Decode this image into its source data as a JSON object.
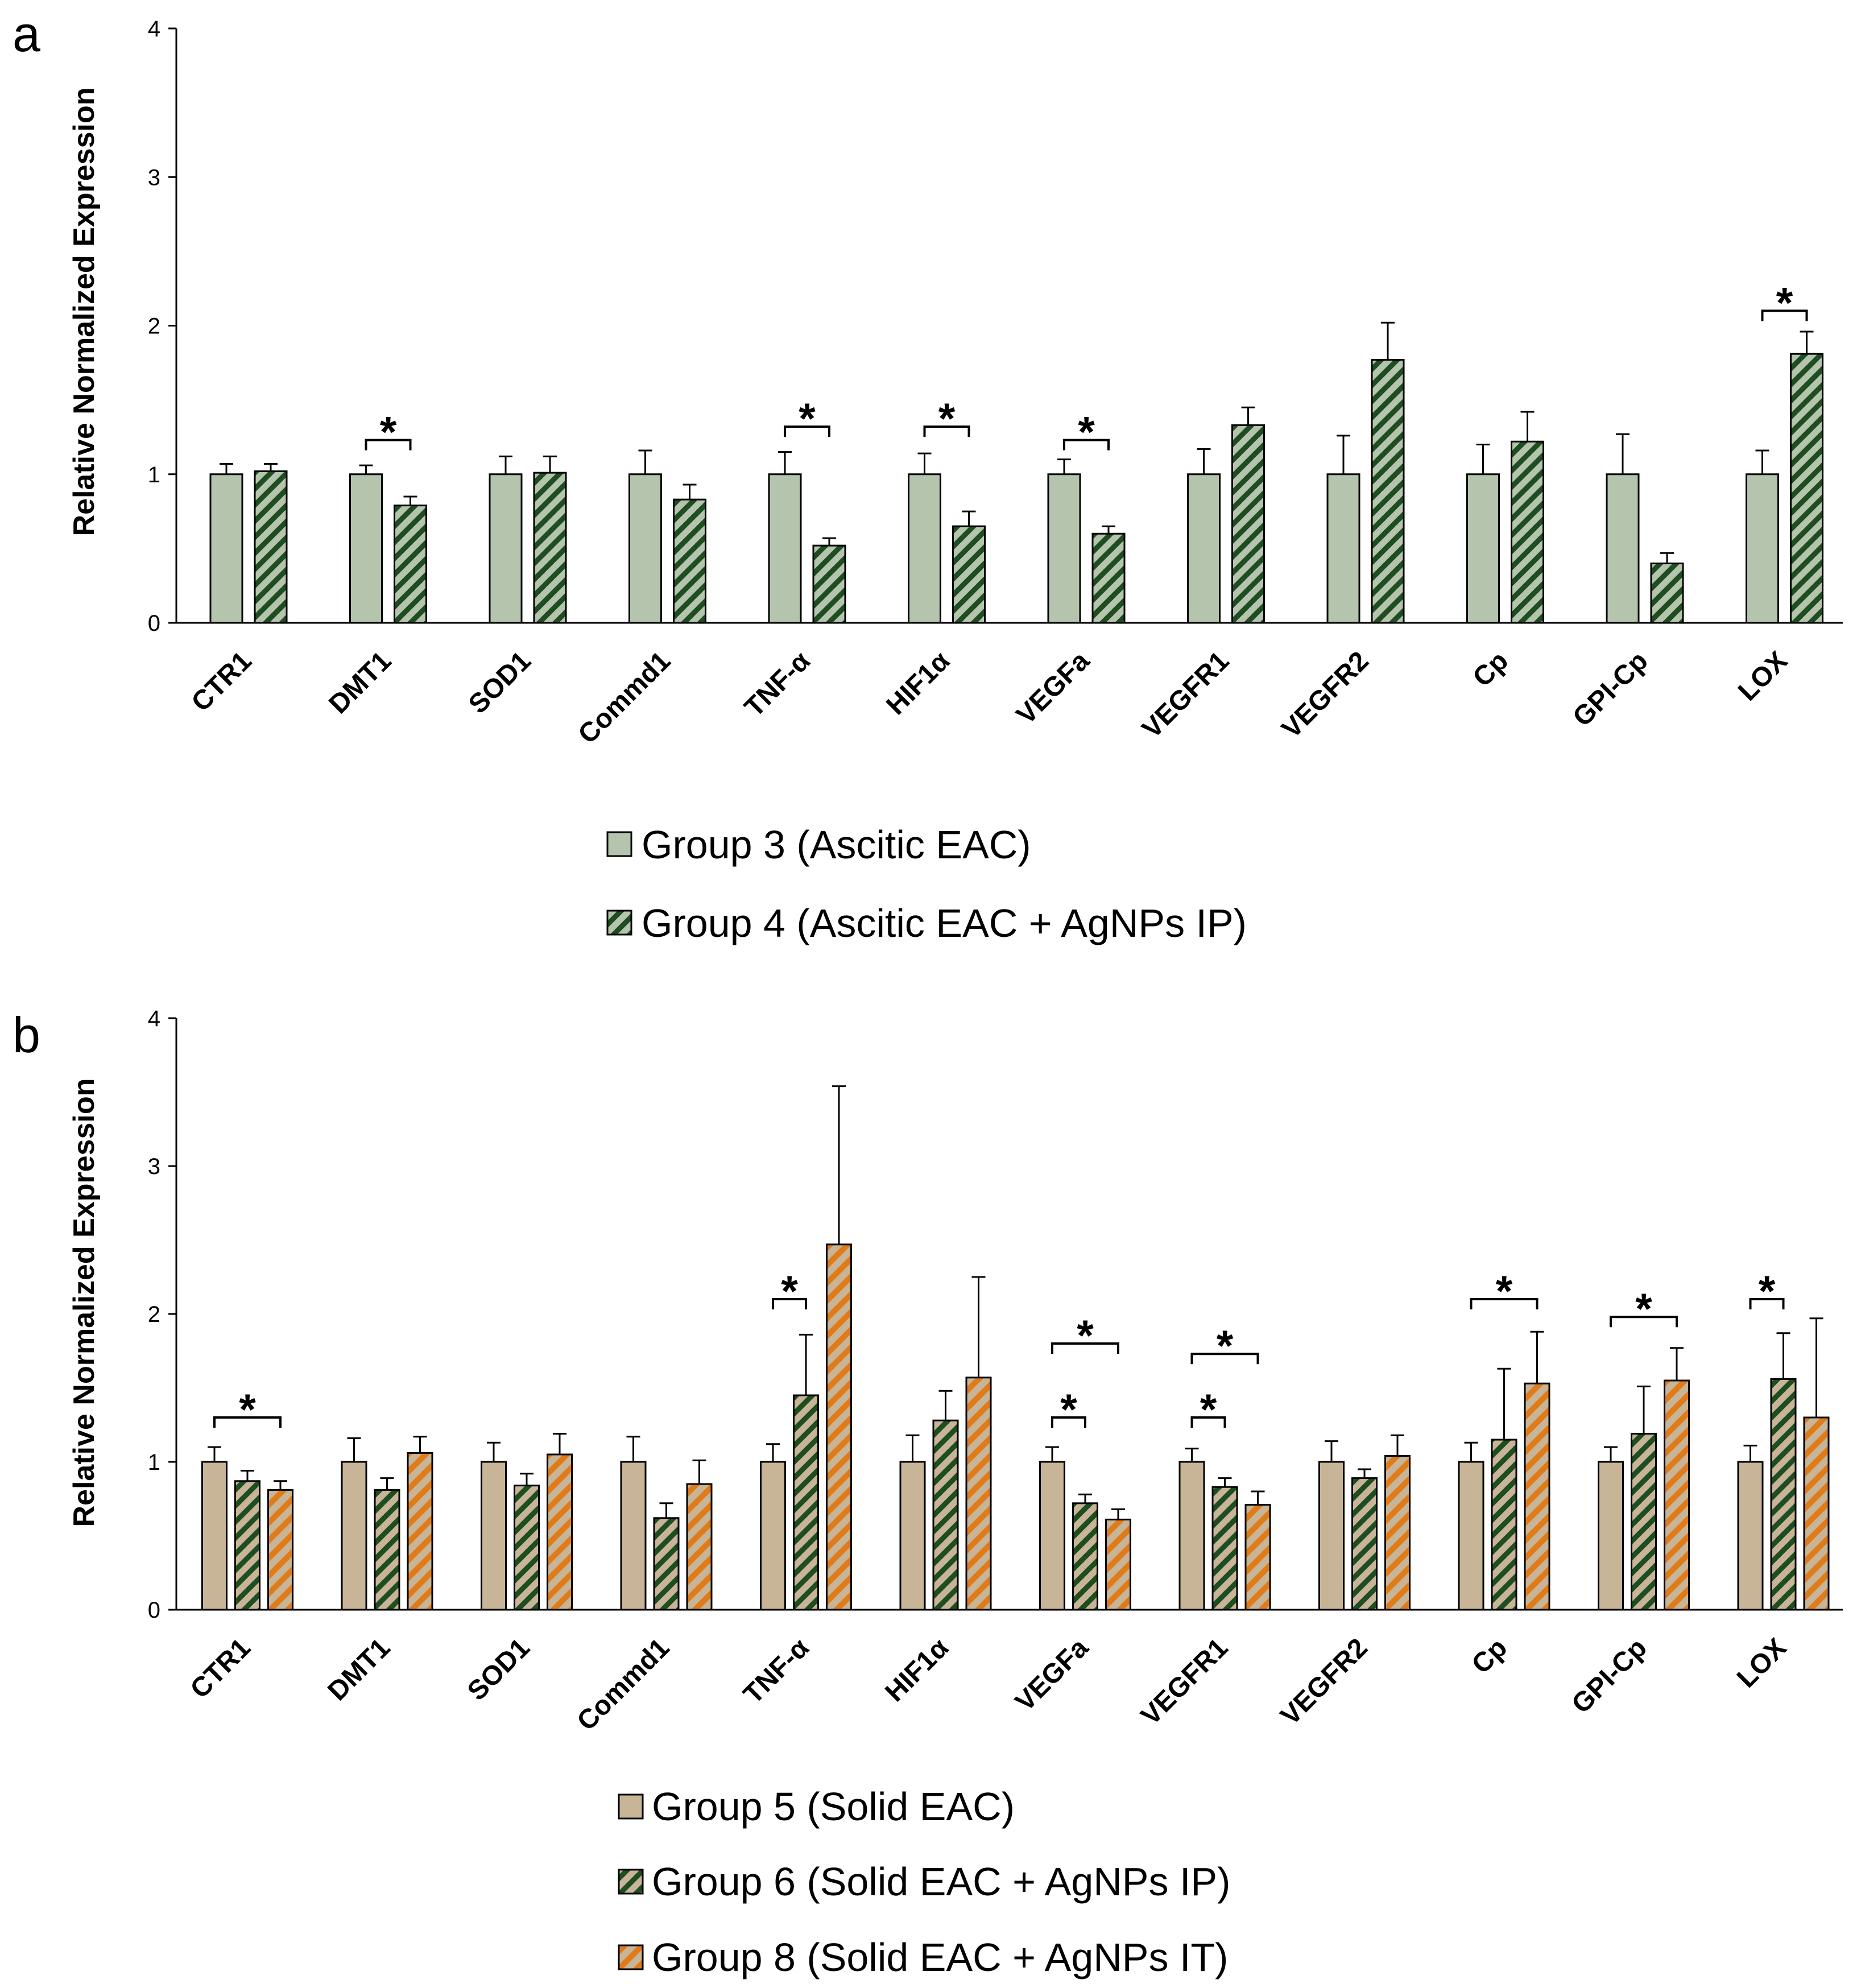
{
  "chart_data": [
    {
      "type": "bar",
      "panel_label": "a",
      "ylabel": "Relative Normalized Expression",
      "ylim": [
        0,
        4
      ],
      "yticks": [
        0,
        1,
        2,
        3,
        4
      ],
      "categories": [
        "CTR1",
        "DMT1",
        "SOD1",
        "Commd1",
        "TNF-α",
        "HIF1α",
        "VEGFa",
        "VEGFR1",
        "VEGFR2",
        "Cp",
        "GPI-Cp",
        "LOX"
      ],
      "series": [
        {
          "name": "Group 3 (Ascitic EAC)",
          "fill": "#b5c4ad",
          "pattern": "solid",
          "values": [
            1.0,
            1.0,
            1.0,
            1.0,
            1.0,
            1.0,
            1.0,
            1.0,
            1.0,
            1.0,
            1.0,
            1.0
          ],
          "errors": [
            0.07,
            0.06,
            0.12,
            0.16,
            0.15,
            0.14,
            0.1,
            0.17,
            0.26,
            0.2,
            0.27,
            0.16
          ]
        },
        {
          "name": "Group 4 (Ascitic EAC + AgNPs IP)",
          "fill": "#b5c4ad",
          "pattern": "stripe",
          "stripe": "#1e4d22",
          "values": [
            1.02,
            0.79,
            1.01,
            0.83,
            0.52,
            0.65,
            0.6,
            1.33,
            1.77,
            1.22,
            0.4,
            1.81
          ],
          "errors": [
            0.05,
            0.06,
            0.11,
            0.1,
            0.05,
            0.1,
            0.05,
            0.12,
            0.25,
            0.2,
            0.07,
            0.15
          ]
        }
      ],
      "significance": [
        {
          "category": 1,
          "from": 0,
          "to": 1,
          "level": 1.23,
          "label": "*"
        },
        {
          "category": 4,
          "from": 0,
          "to": 1,
          "level": 1.32,
          "label": "*"
        },
        {
          "category": 5,
          "from": 0,
          "to": 1,
          "level": 1.32,
          "label": "*"
        },
        {
          "category": 6,
          "from": 0,
          "to": 1,
          "level": 1.23,
          "label": "*"
        },
        {
          "category": 11,
          "from": 0,
          "to": 1,
          "level": 2.1,
          "label": "*"
        }
      ]
    },
    {
      "type": "bar",
      "panel_label": "b",
      "ylabel": "Relative Normalized Expression",
      "ylim": [
        0,
        4
      ],
      "yticks": [
        0,
        1,
        2,
        3,
        4
      ],
      "categories": [
        "CTR1",
        "DMT1",
        "SOD1",
        "Commd1",
        "TNF-α",
        "HIF1α",
        "VEGFa",
        "VEGFR1",
        "VEGFR2",
        "Cp",
        "GPI-Cp",
        "LOX"
      ],
      "series": [
        {
          "name": "Group 5 (Solid EAC)",
          "fill": "#c8b496",
          "pattern": "solid",
          "values": [
            1.0,
            1.0,
            1.0,
            1.0,
            1.0,
            1.0,
            1.0,
            1.0,
            1.0,
            1.0,
            1.0,
            1.0
          ],
          "errors": [
            0.1,
            0.16,
            0.13,
            0.17,
            0.12,
            0.18,
            0.1,
            0.09,
            0.14,
            0.13,
            0.1,
            0.11
          ]
        },
        {
          "name": "Group 6 (Solid EAC + AgNPs IP)",
          "fill": "#c8b496",
          "pattern": "stripe",
          "stripe": "#1e4d22",
          "values": [
            0.87,
            0.81,
            0.84,
            0.62,
            1.45,
            1.28,
            0.72,
            0.83,
            0.89,
            1.15,
            1.19,
            1.56
          ],
          "errors": [
            0.07,
            0.08,
            0.08,
            0.1,
            0.41,
            0.2,
            0.06,
            0.06,
            0.06,
            0.48,
            0.32,
            0.31
          ]
        },
        {
          "name": "Group 8 (Solid EAC + AgNPs IT)",
          "fill": "#c8b496",
          "pattern": "stripe",
          "stripe": "#e07b1a",
          "values": [
            0.81,
            1.06,
            1.05,
            0.85,
            2.47,
            1.57,
            0.61,
            0.71,
            1.04,
            1.53,
            1.55,
            1.3
          ],
          "errors": [
            0.06,
            0.11,
            0.14,
            0.16,
            1.07,
            0.68,
            0.07,
            0.09,
            0.14,
            0.35,
            0.22,
            0.67
          ]
        }
      ],
      "significance": [
        {
          "category": 0,
          "from": 0,
          "to": 2,
          "level": 1.3,
          "label": "*"
        },
        {
          "category": 4,
          "from": 0,
          "to": 1,
          "level": 2.1,
          "label": "*"
        },
        {
          "category": 6,
          "from": 0,
          "to": 1,
          "level": 1.3,
          "label": "*"
        },
        {
          "category": 6,
          "from": 0,
          "to": 2,
          "level": 1.8,
          "label": "*"
        },
        {
          "category": 7,
          "from": 0,
          "to": 1,
          "level": 1.3,
          "label": "*"
        },
        {
          "category": 7,
          "from": 0,
          "to": 2,
          "level": 1.73,
          "label": "*"
        },
        {
          "category": 9,
          "from": 0,
          "to": 2,
          "level": 2.1,
          "label": "*"
        },
        {
          "category": 10,
          "from": 0,
          "to": 2,
          "level": 1.98,
          "label": "*"
        },
        {
          "category": 11,
          "from": 0,
          "to": 1,
          "level": 2.1,
          "label": "*"
        }
      ]
    }
  ]
}
